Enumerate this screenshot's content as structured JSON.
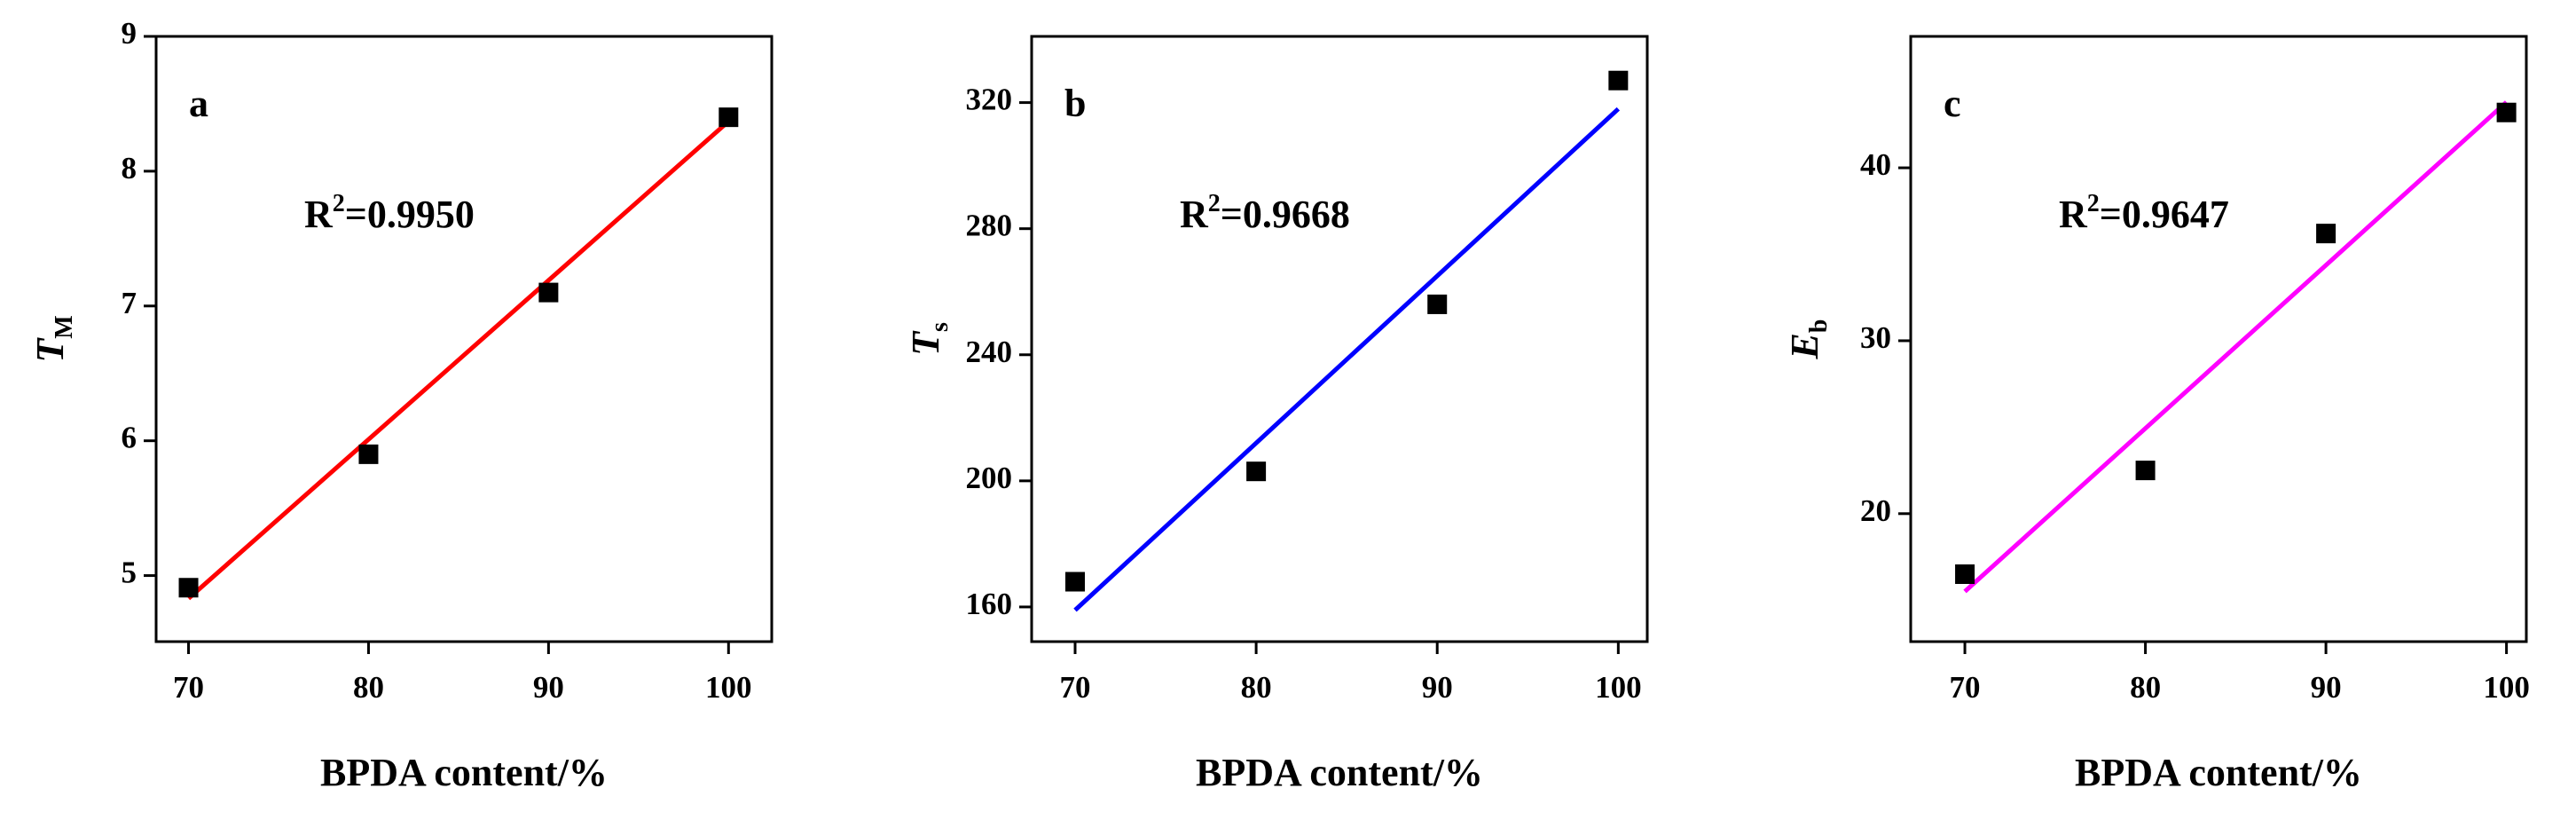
{
  "chart_data": [
    {
      "type": "scatter",
      "letter": "a",
      "annotation": {
        "base": "R",
        "sup": "2",
        "text": "=0.9950"
      },
      "x_label": "BPDA content/%",
      "y_label": {
        "base": "T",
        "sub": "M"
      },
      "x": [
        70,
        80,
        90,
        100
      ],
      "values": [
        4.91,
        5.9,
        7.1,
        8.4
      ],
      "marker_color": "#000000",
      "fit_line": {
        "x": [
          70,
          100
        ],
        "values": [
          4.83,
          8.37
        ],
        "color": "#ff0000"
      },
      "xlim": [
        68.2,
        102.4
      ],
      "xticks": [
        70,
        80,
        90,
        100
      ],
      "ylim": [
        4.51,
        9
      ],
      "yticks": [
        5,
        6,
        7,
        8,
        9
      ]
    },
    {
      "type": "scatter",
      "letter": "b",
      "annotation": {
        "base": "R",
        "sup": "2",
        "text": "=0.9668"
      },
      "x_label": "BPDA content/%",
      "y_label": {
        "base": "T",
        "sub": "s"
      },
      "x": [
        70,
        80,
        90,
        100
      ],
      "values": [
        168,
        203,
        256,
        327
      ],
      "marker_color": "#000000",
      "fit_line": {
        "x": [
          70,
          100
        ],
        "values": [
          159,
          318
        ],
        "color": "#0000ff"
      },
      "xlim": [
        67.6,
        101.6
      ],
      "xticks": [
        70,
        80,
        90,
        100
      ],
      "ylim": [
        149,
        341
      ],
      "yticks": [
        160,
        200,
        240,
        280,
        320
      ]
    },
    {
      "type": "scatter",
      "letter": "c",
      "annotation": {
        "base": "R",
        "sup": "2",
        "text": "=0.9647"
      },
      "x_label": "BPDA content/%",
      "y_label": {
        "base": "E",
        "sub": "b"
      },
      "x": [
        70,
        80,
        90,
        100
      ],
      "values": [
        16.5,
        22.5,
        36.2,
        43.2
      ],
      "marker_color": "#000000",
      "fit_line": {
        "x": [
          70,
          100
        ],
        "values": [
          15.5,
          43.8
        ],
        "color": "#ff00ff"
      },
      "xlim": [
        67,
        101.1
      ],
      "xticks": [
        70,
        80,
        90,
        100
      ],
      "ylim": [
        12.6,
        47.6
      ],
      "yticks": [
        20,
        30,
        40
      ]
    }
  ]
}
